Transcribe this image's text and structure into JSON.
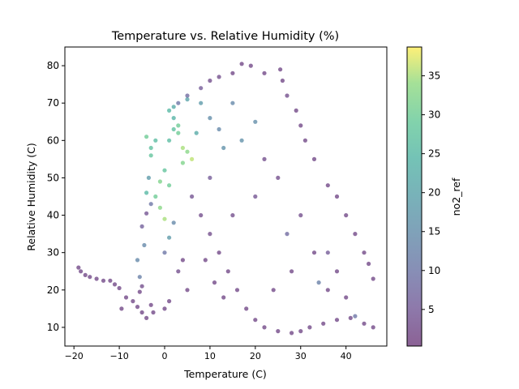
{
  "chart_data": {
    "type": "scatter",
    "title": "Temperature vs. Relative Humidity (%)",
    "xlabel": "Temperature (C)",
    "ylabel": "Relative Humidity (C)",
    "xlim": [
      -22,
      49
    ],
    "ylim": [
      5,
      85
    ],
    "xticks": [
      -20,
      -10,
      0,
      10,
      20,
      30,
      40
    ],
    "yticks": [
      10,
      20,
      30,
      40,
      50,
      60,
      70,
      80
    ],
    "grid": false,
    "colorbar": {
      "label": "no2_ref",
      "colormap": "viridis",
      "range": [
        0.3,
        38.7
      ],
      "ticks": [
        5,
        10,
        15,
        20,
        25,
        30,
        35
      ],
      "alpha": 0.6
    },
    "series": [
      {
        "columns": [
          "temperature",
          "relative_humidity",
          "no2_ref"
        ],
        "points": [
          [
            -19,
            26,
            2
          ],
          [
            -18.5,
            25,
            2
          ],
          [
            -17.5,
            24,
            2
          ],
          [
            -16.5,
            23.5,
            2
          ],
          [
            -15,
            23,
            2
          ],
          [
            -13.5,
            22.5,
            2
          ],
          [
            -12,
            22.5,
            2
          ],
          [
            -11,
            21.5,
            2
          ],
          [
            -10,
            20.5,
            2
          ],
          [
            -8.5,
            18,
            2
          ],
          [
            -9.5,
            15,
            2
          ],
          [
            -7,
            17,
            2
          ],
          [
            -6,
            15.5,
            2
          ],
          [
            -5,
            14,
            2
          ],
          [
            -4,
            12.5,
            2
          ],
          [
            -3,
            16,
            2
          ],
          [
            -5.5,
            19.5,
            2
          ],
          [
            -5,
            21,
            3
          ],
          [
            -5.5,
            23.5,
            12
          ],
          [
            -6,
            28,
            14
          ],
          [
            -4.5,
            32,
            14
          ],
          [
            -5,
            37,
            6
          ],
          [
            -4,
            40.5,
            4
          ],
          [
            -3,
            43,
            10
          ],
          [
            -4,
            46,
            25
          ],
          [
            -3.5,
            50,
            18
          ],
          [
            -3,
            56,
            28
          ],
          [
            -4,
            61,
            30
          ],
          [
            -3,
            58,
            27
          ],
          [
            -2,
            60,
            26
          ],
          [
            -2,
            45,
            30
          ],
          [
            -1,
            42,
            33
          ],
          [
            0,
            39,
            35
          ],
          [
            -1,
            49,
            32
          ],
          [
            0,
            52,
            28
          ],
          [
            1,
            48,
            30
          ],
          [
            1,
            60,
            26
          ],
          [
            2,
            63,
            27
          ],
          [
            2,
            66,
            24
          ],
          [
            3,
            64,
            30
          ],
          [
            4,
            58,
            35
          ],
          [
            5,
            57,
            33
          ],
          [
            6,
            55,
            36
          ],
          [
            4,
            54,
            32
          ],
          [
            3,
            62,
            30
          ],
          [
            1,
            68,
            25
          ],
          [
            2,
            69,
            22
          ],
          [
            0,
            15,
            2
          ],
          [
            1,
            17,
            2
          ],
          [
            -2.5,
            14,
            2
          ],
          [
            0,
            30,
            10
          ],
          [
            1,
            34,
            18
          ],
          [
            2,
            38,
            14
          ],
          [
            5,
            71,
            20
          ],
          [
            8,
            70,
            18
          ],
          [
            7,
            62,
            22
          ],
          [
            10,
            66,
            15
          ],
          [
            12,
            63,
            14
          ],
          [
            13,
            58,
            16
          ],
          [
            15,
            70,
            14
          ],
          [
            17,
            60,
            16
          ],
          [
            20,
            65,
            15
          ],
          [
            6,
            45,
            4
          ],
          [
            8,
            40,
            3
          ],
          [
            10,
            35,
            3
          ],
          [
            12,
            30,
            2
          ],
          [
            14,
            25,
            2
          ],
          [
            16,
            20,
            2
          ],
          [
            18,
            15,
            2
          ],
          [
            20,
            12,
            2
          ],
          [
            22,
            10,
            2
          ],
          [
            25,
            9,
            2
          ],
          [
            28,
            8.5,
            2
          ],
          [
            30,
            9,
            2
          ],
          [
            32,
            10,
            2
          ],
          [
            35,
            11,
            2
          ],
          [
            38,
            12,
            2
          ],
          [
            41,
            12.5,
            2
          ],
          [
            44,
            11,
            2
          ],
          [
            46,
            10,
            2
          ],
          [
            46,
            23,
            2
          ],
          [
            45,
            27,
            2
          ],
          [
            44,
            30,
            2
          ],
          [
            42,
            35,
            2
          ],
          [
            40,
            40,
            2
          ],
          [
            38,
            45,
            2
          ],
          [
            36,
            48,
            2
          ],
          [
            33,
            55,
            2
          ],
          [
            31,
            60,
            2
          ],
          [
            30,
            64,
            2
          ],
          [
            29,
            68,
            2
          ],
          [
            27,
            72,
            3
          ],
          [
            26,
            76,
            2
          ],
          [
            25.5,
            79,
            2
          ],
          [
            22,
            78,
            2
          ],
          [
            19,
            80,
            2
          ],
          [
            17,
            80.5,
            2
          ],
          [
            15,
            78,
            2
          ],
          [
            12,
            77,
            3
          ],
          [
            10,
            76,
            3
          ],
          [
            8,
            74,
            5
          ],
          [
            5,
            72,
            8
          ],
          [
            3,
            70,
            10
          ],
          [
            24,
            20,
            2
          ],
          [
            28,
            25,
            2
          ],
          [
            33,
            30,
            2
          ],
          [
            36,
            20,
            2
          ],
          [
            38,
            25,
            2
          ],
          [
            40,
            18,
            2
          ],
          [
            30,
            40,
            3
          ],
          [
            25,
            50,
            3
          ],
          [
            20,
            45,
            4
          ],
          [
            15,
            40,
            3
          ],
          [
            10,
            50,
            5
          ],
          [
            22,
            55,
            3
          ],
          [
            27,
            35,
            8
          ],
          [
            34,
            22,
            12
          ],
          [
            42,
            13,
            10
          ],
          [
            36,
            30,
            5
          ],
          [
            5,
            20,
            2
          ],
          [
            3,
            25,
            3
          ],
          [
            4,
            28,
            2
          ],
          [
            9,
            28,
            2
          ],
          [
            11,
            22,
            2
          ],
          [
            13,
            18,
            2
          ]
        ]
      }
    ]
  }
}
